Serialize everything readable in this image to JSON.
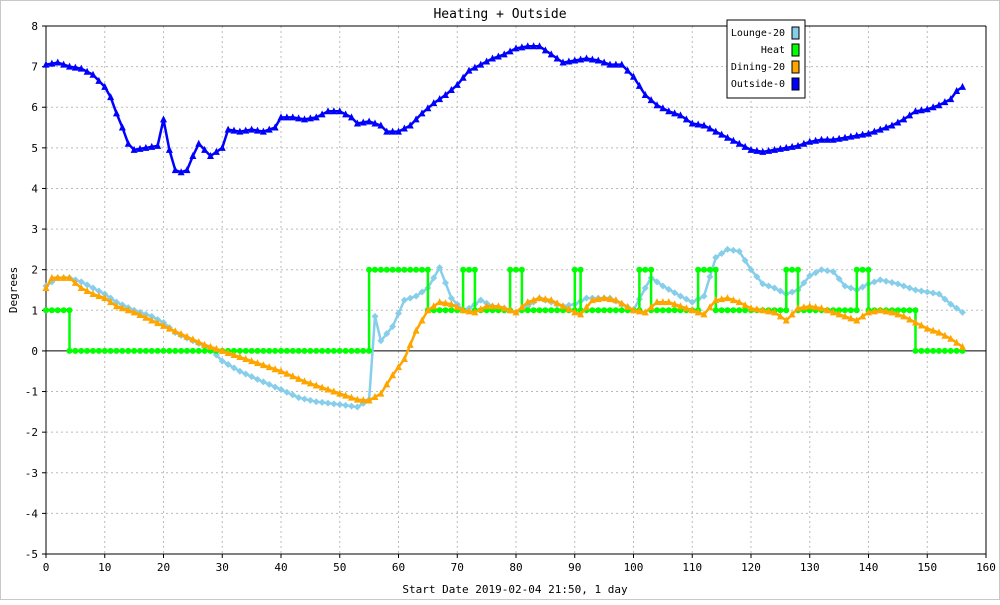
{
  "chart_data": {
    "type": "line",
    "title": "Heating + Outside",
    "xlabel": "Start Date 2019-02-04 21:50, 1 day",
    "ylabel": "Degrees",
    "xlim": [
      0,
      160
    ],
    "ylim": [
      -5,
      8
    ],
    "x_ticks": [
      0,
      10,
      20,
      30,
      40,
      50,
      60,
      70,
      80,
      90,
      100,
      110,
      120,
      130,
      140,
      150,
      160
    ],
    "y_ticks": [
      -5,
      -4,
      -3,
      -2,
      -1,
      0,
      1,
      2,
      3,
      4,
      5,
      6,
      7,
      8
    ],
    "grid": true,
    "legend_position": "top-right",
    "series": [
      {
        "name": "Lounge-20",
        "color": "#87ceeb",
        "marker": "diamond",
        "points": [
          [
            0,
            1.6
          ],
          [
            2,
            1.8
          ],
          [
            4,
            1.8
          ],
          [
            6,
            1.7
          ],
          [
            8,
            1.55
          ],
          [
            10,
            1.4
          ],
          [
            12,
            1.2
          ],
          [
            15,
            1.0
          ],
          [
            18,
            0.85
          ],
          [
            20,
            0.7
          ],
          [
            22,
            0.45
          ],
          [
            25,
            0.25
          ],
          [
            28,
            0.05
          ],
          [
            30,
            -0.25
          ],
          [
            33,
            -0.5
          ],
          [
            36,
            -0.7
          ],
          [
            40,
            -0.95
          ],
          [
            43,
            -1.15
          ],
          [
            46,
            -1.25
          ],
          [
            50,
            -1.32
          ],
          [
            53,
            -1.38
          ],
          [
            55,
            -1.2
          ],
          [
            56,
            0.85
          ],
          [
            57,
            0.25
          ],
          [
            59,
            0.6
          ],
          [
            61,
            1.25
          ],
          [
            63,
            1.35
          ],
          [
            65,
            1.55
          ],
          [
            67,
            2.05
          ],
          [
            69,
            1.3
          ],
          [
            71,
            1.0
          ],
          [
            72,
            1.05
          ],
          [
            74,
            1.25
          ],
          [
            76,
            1.1
          ],
          [
            78,
            1.05
          ],
          [
            80,
            0.95
          ],
          [
            82,
            1.1
          ],
          [
            84,
            1.3
          ],
          [
            86,
            1.2
          ],
          [
            88,
            1.1
          ],
          [
            90,
            1.15
          ],
          [
            92,
            1.3
          ],
          [
            94,
            1.3
          ],
          [
            96,
            1.3
          ],
          [
            98,
            1.15
          ],
          [
            100,
            1.0
          ],
          [
            102,
            1.55
          ],
          [
            103,
            1.8
          ],
          [
            105,
            1.6
          ],
          [
            108,
            1.35
          ],
          [
            110,
            1.2
          ],
          [
            112,
            1.35
          ],
          [
            114,
            2.3
          ],
          [
            116,
            2.5
          ],
          [
            118,
            2.45
          ],
          [
            120,
            2.0
          ],
          [
            122,
            1.65
          ],
          [
            124,
            1.55
          ],
          [
            126,
            1.4
          ],
          [
            128,
            1.5
          ],
          [
            130,
            1.85
          ],
          [
            132,
            2.0
          ],
          [
            134,
            1.95
          ],
          [
            136,
            1.6
          ],
          [
            138,
            1.5
          ],
          [
            140,
            1.65
          ],
          [
            142,
            1.75
          ],
          [
            145,
            1.65
          ],
          [
            148,
            1.5
          ],
          [
            150,
            1.45
          ],
          [
            152,
            1.4
          ],
          [
            154,
            1.15
          ],
          [
            156,
            0.95
          ]
        ]
      },
      {
        "name": "Heat",
        "color": "#00ff00",
        "marker": "circle",
        "points": [
          [
            0,
            1
          ],
          [
            4,
            1
          ],
          [
            4,
            0
          ],
          [
            55,
            0
          ],
          [
            55,
            2
          ],
          [
            65,
            2
          ],
          [
            65,
            1
          ],
          [
            71,
            1
          ],
          [
            71,
            2
          ],
          [
            73,
            2
          ],
          [
            73,
            1
          ],
          [
            79,
            1
          ],
          [
            79,
            2
          ],
          [
            81,
            2
          ],
          [
            81,
            1
          ],
          [
            90,
            1
          ],
          [
            90,
            2
          ],
          [
            91,
            2
          ],
          [
            91,
            1
          ],
          [
            101,
            1
          ],
          [
            101,
            2
          ],
          [
            103,
            2
          ],
          [
            103,
            1
          ],
          [
            111,
            1
          ],
          [
            111,
            2
          ],
          [
            114,
            2
          ],
          [
            114,
            1
          ],
          [
            126,
            1
          ],
          [
            126,
            2
          ],
          [
            128,
            2
          ],
          [
            128,
            1
          ],
          [
            138,
            1
          ],
          [
            138,
            2
          ],
          [
            140,
            2
          ],
          [
            140,
            1
          ],
          [
            148,
            1
          ],
          [
            148,
            0
          ],
          [
            156,
            0
          ]
        ]
      },
      {
        "name": "Dining-20",
        "color": "#ffa500",
        "marker": "triangle",
        "points": [
          [
            0,
            1.55
          ],
          [
            1,
            1.8
          ],
          [
            4,
            1.8
          ],
          [
            6,
            1.55
          ],
          [
            8,
            1.4
          ],
          [
            10,
            1.3
          ],
          [
            12,
            1.1
          ],
          [
            15,
            0.95
          ],
          [
            18,
            0.75
          ],
          [
            21,
            0.55
          ],
          [
            24,
            0.35
          ],
          [
            27,
            0.15
          ],
          [
            30,
            0.0
          ],
          [
            33,
            -0.15
          ],
          [
            36,
            -0.3
          ],
          [
            40,
            -0.5
          ],
          [
            44,
            -0.75
          ],
          [
            47,
            -0.9
          ],
          [
            50,
            -1.05
          ],
          [
            53,
            -1.2
          ],
          [
            55,
            -1.22
          ],
          [
            57,
            -1.05
          ],
          [
            59,
            -0.6
          ],
          [
            61,
            -0.2
          ],
          [
            63,
            0.5
          ],
          [
            65,
            1.0
          ],
          [
            67,
            1.2
          ],
          [
            69,
            1.15
          ],
          [
            71,
            1.0
          ],
          [
            73,
            0.95
          ],
          [
            75,
            1.1
          ],
          [
            77,
            1.1
          ],
          [
            80,
            0.95
          ],
          [
            82,
            1.2
          ],
          [
            84,
            1.3
          ],
          [
            86,
            1.25
          ],
          [
            88,
            1.1
          ],
          [
            90,
            0.95
          ],
          [
            91,
            0.9
          ],
          [
            93,
            1.25
          ],
          [
            95,
            1.3
          ],
          [
            97,
            1.25
          ],
          [
            100,
            1.0
          ],
          [
            102,
            0.95
          ],
          [
            104,
            1.2
          ],
          [
            106,
            1.2
          ],
          [
            108,
            1.1
          ],
          [
            110,
            1.0
          ],
          [
            112,
            0.9
          ],
          [
            114,
            1.25
          ],
          [
            116,
            1.3
          ],
          [
            118,
            1.2
          ],
          [
            120,
            1.05
          ],
          [
            122,
            1.0
          ],
          [
            124,
            0.95
          ],
          [
            126,
            0.75
          ],
          [
            128,
            1.05
          ],
          [
            130,
            1.1
          ],
          [
            132,
            1.05
          ],
          [
            134,
            0.95
          ],
          [
            136,
            0.85
          ],
          [
            138,
            0.75
          ],
          [
            140,
            0.95
          ],
          [
            142,
            1.0
          ],
          [
            144,
            0.95
          ],
          [
            146,
            0.85
          ],
          [
            148,
            0.7
          ],
          [
            150,
            0.55
          ],
          [
            152,
            0.45
          ],
          [
            154,
            0.3
          ],
          [
            156,
            0.1
          ]
        ]
      },
      {
        "name": "Outside-0",
        "color": "#0000ff",
        "marker": "triangle",
        "points": [
          [
            0,
            7.05
          ],
          [
            2,
            7.1
          ],
          [
            4,
            7.0
          ],
          [
            6,
            6.95
          ],
          [
            8,
            6.8
          ],
          [
            10,
            6.5
          ],
          [
            11,
            6.25
          ],
          [
            12,
            5.85
          ],
          [
            13,
            5.5
          ],
          [
            14,
            5.1
          ],
          [
            15,
            4.95
          ],
          [
            17,
            5.0
          ],
          [
            19,
            5.05
          ],
          [
            20,
            5.7
          ],
          [
            21,
            4.95
          ],
          [
            22,
            4.45
          ],
          [
            23,
            4.4
          ],
          [
            24,
            4.45
          ],
          [
            25,
            4.8
          ],
          [
            26,
            5.1
          ],
          [
            28,
            4.8
          ],
          [
            30,
            5.0
          ],
          [
            31,
            5.45
          ],
          [
            33,
            5.4
          ],
          [
            35,
            5.45
          ],
          [
            37,
            5.4
          ],
          [
            39,
            5.5
          ],
          [
            40,
            5.75
          ],
          [
            42,
            5.75
          ],
          [
            44,
            5.7
          ],
          [
            46,
            5.75
          ],
          [
            48,
            5.9
          ],
          [
            50,
            5.9
          ],
          [
            52,
            5.75
          ],
          [
            53,
            5.6
          ],
          [
            55,
            5.65
          ],
          [
            57,
            5.55
          ],
          [
            58,
            5.4
          ],
          [
            60,
            5.4
          ],
          [
            62,
            5.55
          ],
          [
            64,
            5.85
          ],
          [
            66,
            6.1
          ],
          [
            68,
            6.3
          ],
          [
            70,
            6.55
          ],
          [
            72,
            6.9
          ],
          [
            74,
            7.05
          ],
          [
            76,
            7.2
          ],
          [
            78,
            7.3
          ],
          [
            80,
            7.45
          ],
          [
            82,
            7.5
          ],
          [
            84,
            7.5
          ],
          [
            86,
            7.3
          ],
          [
            88,
            7.1
          ],
          [
            90,
            7.15
          ],
          [
            92,
            7.2
          ],
          [
            94,
            7.15
          ],
          [
            96,
            7.05
          ],
          [
            98,
            7.05
          ],
          [
            100,
            6.75
          ],
          [
            102,
            6.3
          ],
          [
            104,
            6.05
          ],
          [
            106,
            5.9
          ],
          [
            108,
            5.8
          ],
          [
            110,
            5.6
          ],
          [
            112,
            5.55
          ],
          [
            114,
            5.4
          ],
          [
            116,
            5.25
          ],
          [
            118,
            5.1
          ],
          [
            120,
            4.95
          ],
          [
            122,
            4.9
          ],
          [
            124,
            4.95
          ],
          [
            126,
            5.0
          ],
          [
            128,
            5.05
          ],
          [
            130,
            5.15
          ],
          [
            132,
            5.2
          ],
          [
            134,
            5.2
          ],
          [
            136,
            5.25
          ],
          [
            138,
            5.3
          ],
          [
            140,
            5.35
          ],
          [
            142,
            5.45
          ],
          [
            144,
            5.55
          ],
          [
            146,
            5.7
          ],
          [
            148,
            5.9
          ],
          [
            150,
            5.95
          ],
          [
            152,
            6.05
          ],
          [
            154,
            6.2
          ],
          [
            155,
            6.4
          ],
          [
            156,
            6.5
          ]
        ]
      }
    ]
  }
}
